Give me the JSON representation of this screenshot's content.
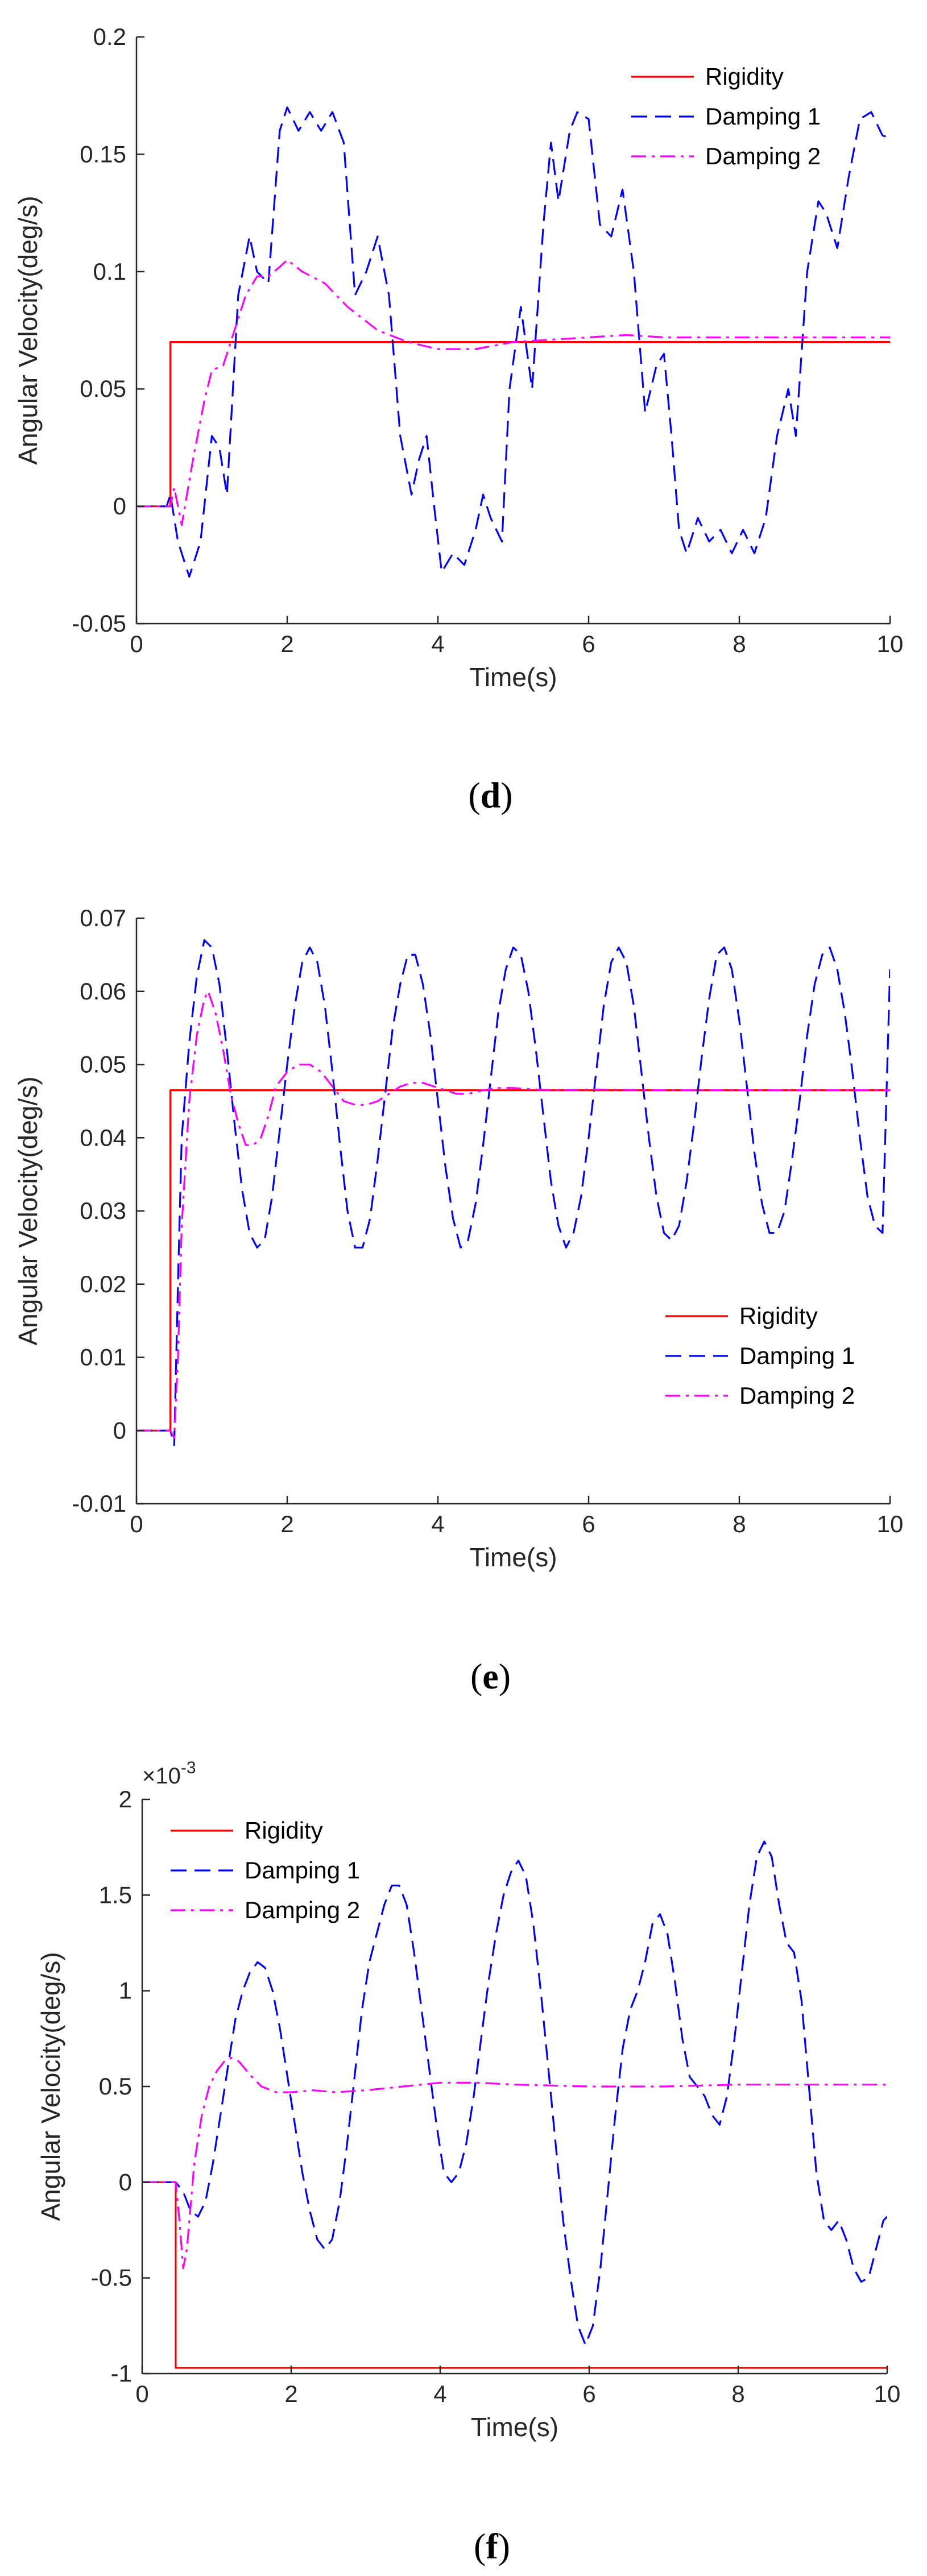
{
  "colors": {
    "rigidity": "#FF0000",
    "damping1": "#0000FF",
    "damping2": "#FF00FF",
    "axis": "#262626"
  },
  "chart_data": [
    {
      "type": "line",
      "caption_open": "(",
      "caption_letter": "d",
      "caption_close": ")",
      "xlabel": "Time(s)",
      "ylabel": "Angular Velocity(deg/s)",
      "xlim": [
        0,
        10
      ],
      "ylim": [
        -0.05,
        0.2
      ],
      "xticks": [
        0,
        2,
        4,
        6,
        8,
        10
      ],
      "yticks": [
        -0.05,
        0,
        0.05,
        0.1,
        0.15,
        0.2
      ],
      "xtick_labels": [
        "0",
        "2",
        "4",
        "6",
        "8",
        "10"
      ],
      "ytick_labels": [
        "-0.05",
        "0",
        "0.05",
        "0.1",
        "0.15",
        "0.2"
      ],
      "exponent_label": "",
      "legend_position": "top-right",
      "series": [
        {
          "name": "Rigidity",
          "style": "solid",
          "color_key": "rigidity",
          "x": [
            0,
            0.45,
            0.45,
            10
          ],
          "y": [
            0,
            0,
            0.07,
            0.07
          ]
        },
        {
          "name": "Damping 1",
          "style": "dashed",
          "color_key": "damping1",
          "x": [
            0,
            0.4,
            0.45,
            0.55,
            0.7,
            0.85,
            1.0,
            1.1,
            1.2,
            1.35,
            1.5,
            1.6,
            1.75,
            1.9,
            2.0,
            2.15,
            2.3,
            2.45,
            2.6,
            2.75,
            2.9,
            3.05,
            3.2,
            3.35,
            3.5,
            3.65,
            3.75,
            3.85,
            3.95,
            4.05,
            4.2,
            4.35,
            4.5,
            4.6,
            4.7,
            4.85,
            4.95,
            5.1,
            5.25,
            5.4,
            5.5,
            5.6,
            5.75,
            5.85,
            6.0,
            6.15,
            6.3,
            6.45,
            6.6,
            6.75,
            6.9,
            7.0,
            7.1,
            7.2,
            7.3,
            7.45,
            7.6,
            7.75,
            7.9,
            8.05,
            8.2,
            8.35,
            8.5,
            8.65,
            8.75,
            8.9,
            9.05,
            9.15,
            9.3,
            9.45,
            9.6,
            9.75,
            9.9,
            10.0
          ],
          "y": [
            0,
            0,
            0.005,
            -0.015,
            -0.03,
            -0.015,
            0.03,
            0.025,
            0.005,
            0.09,
            0.115,
            0.1,
            0.095,
            0.16,
            0.17,
            0.16,
            0.168,
            0.16,
            0.168,
            0.155,
            0.09,
            0.1,
            0.115,
            0.09,
            0.03,
            0.005,
            0.02,
            0.03,
            0.0,
            -0.028,
            -0.02,
            -0.025,
            -0.01,
            0.005,
            -0.005,
            -0.015,
            0.05,
            0.085,
            0.05,
            0.12,
            0.155,
            0.13,
            0.16,
            0.168,
            0.165,
            0.12,
            0.115,
            0.135,
            0.1,
            0.04,
            0.06,
            0.065,
            0.03,
            -0.01,
            -0.02,
            -0.005,
            -0.015,
            -0.01,
            -0.02,
            -0.01,
            -0.02,
            -0.005,
            0.03,
            0.05,
            0.03,
            0.1,
            0.13,
            0.125,
            0.11,
            0.14,
            0.165,
            0.168,
            0.158,
            0.157
          ]
        },
        {
          "name": "Damping 2",
          "style": "dashdot",
          "color_key": "damping2",
          "x": [
            0,
            0.45,
            0.5,
            0.6,
            0.75,
            0.9,
            1.0,
            1.15,
            1.3,
            1.45,
            1.6,
            1.75,
            1.9,
            2.0,
            2.2,
            2.5,
            2.8,
            3.2,
            3.6,
            4.0,
            4.5,
            5.0,
            5.5,
            6.0,
            6.5,
            7.0,
            8.0,
            9.0,
            10.0
          ],
          "y": [
            0,
            0,
            0.008,
            -0.008,
            0.02,
            0.045,
            0.058,
            0.06,
            0.075,
            0.09,
            0.098,
            0.098,
            0.102,
            0.105,
            0.1,
            0.095,
            0.085,
            0.075,
            0.07,
            0.067,
            0.067,
            0.07,
            0.071,
            0.072,
            0.073,
            0.072,
            0.072,
            0.072,
            0.072
          ]
        }
      ]
    },
    {
      "type": "line",
      "caption_open": "(",
      "caption_letter": "e",
      "caption_close": ")",
      "xlabel": "Time(s)",
      "ylabel": "Angular Velocity(deg/s)",
      "xlim": [
        0,
        10
      ],
      "ylim": [
        -0.01,
        0.07
      ],
      "xticks": [
        0,
        2,
        4,
        6,
        8,
        10
      ],
      "yticks": [
        -0.01,
        0,
        0.01,
        0.02,
        0.03,
        0.04,
        0.05,
        0.06,
        0.07
      ],
      "xtick_labels": [
        "0",
        "2",
        "4",
        "6",
        "8",
        "10"
      ],
      "ytick_labels": [
        "-0.01",
        "0",
        "0.01",
        "0.02",
        "0.03",
        "0.04",
        "0.05",
        "0.06",
        "0.07"
      ],
      "exponent_label": "",
      "legend_position": "bottom-right",
      "series": [
        {
          "name": "Rigidity",
          "style": "solid",
          "color_key": "rigidity",
          "x": [
            0,
            0.45,
            0.45,
            10
          ],
          "y": [
            0,
            0,
            0.0465,
            0.0465
          ]
        },
        {
          "name": "Damping 1",
          "style": "dashed",
          "color_key": "damping1",
          "x": [
            0,
            0.45,
            0.5,
            0.55,
            0.6,
            0.7,
            0.8,
            0.9,
            1.0,
            1.1,
            1.2,
            1.3,
            1.4,
            1.5,
            1.6,
            1.7,
            1.8,
            1.9,
            2.0,
            2.1,
            2.2,
            2.3,
            2.4,
            2.5,
            2.6,
            2.7,
            2.8,
            2.9,
            3.0,
            3.1,
            3.2,
            3.3,
            3.4,
            3.5,
            3.6,
            3.7,
            3.8,
            3.9,
            4.0,
            4.1,
            4.2,
            4.3,
            4.4,
            4.5,
            4.6,
            4.7,
            4.8,
            4.9,
            5.0,
            5.1,
            5.2,
            5.3,
            5.4,
            5.5,
            5.6,
            5.7,
            5.8,
            5.9,
            6.0,
            6.1,
            6.2,
            6.3,
            6.4,
            6.5,
            6.6,
            6.7,
            6.8,
            6.9,
            7.0,
            7.1,
            7.2,
            7.3,
            7.4,
            7.5,
            7.6,
            7.7,
            7.8,
            7.9,
            8.0,
            8.1,
            8.2,
            8.3,
            8.4,
            8.5,
            8.6,
            8.7,
            8.8,
            8.9,
            9.0,
            9.1,
            9.2,
            9.3,
            9.4,
            9.5,
            9.6,
            9.7,
            9.8,
            9.9,
            10.0
          ],
          "y": [
            0,
            0,
            -0.002,
            0.02,
            0.04,
            0.053,
            0.062,
            0.067,
            0.066,
            0.061,
            0.052,
            0.042,
            0.033,
            0.027,
            0.025,
            0.026,
            0.032,
            0.041,
            0.05,
            0.058,
            0.064,
            0.066,
            0.064,
            0.058,
            0.049,
            0.039,
            0.03,
            0.025,
            0.025,
            0.029,
            0.037,
            0.046,
            0.055,
            0.061,
            0.065,
            0.065,
            0.061,
            0.054,
            0.045,
            0.036,
            0.029,
            0.025,
            0.026,
            0.031,
            0.039,
            0.048,
            0.057,
            0.063,
            0.066,
            0.065,
            0.06,
            0.052,
            0.043,
            0.034,
            0.028,
            0.025,
            0.027,
            0.032,
            0.04,
            0.049,
            0.058,
            0.064,
            0.066,
            0.064,
            0.058,
            0.049,
            0.04,
            0.032,
            0.027,
            0.026,
            0.028,
            0.034,
            0.042,
            0.051,
            0.059,
            0.065,
            0.066,
            0.063,
            0.056,
            0.047,
            0.038,
            0.031,
            0.027,
            0.027,
            0.03,
            0.037,
            0.045,
            0.054,
            0.061,
            0.065,
            0.066,
            0.063,
            0.057,
            0.049,
            0.04,
            0.032,
            0.028,
            0.027,
            0.063
          ]
        },
        {
          "name": "Damping 2",
          "style": "dashdot",
          "color_key": "damping2",
          "x": [
            0,
            0.45,
            0.5,
            0.55,
            0.6,
            0.7,
            0.8,
            0.9,
            0.95,
            1.05,
            1.15,
            1.25,
            1.35,
            1.45,
            1.55,
            1.65,
            1.75,
            1.85,
            2.0,
            2.15,
            2.3,
            2.45,
            2.6,
            2.75,
            2.9,
            3.05,
            3.2,
            3.35,
            3.5,
            3.65,
            3.8,
            3.95,
            4.1,
            4.25,
            4.4,
            4.6,
            4.8,
            5.0,
            5.3,
            5.6,
            6.0,
            7.0,
            8.0,
            9.0,
            10.0
          ],
          "y": [
            0,
            0,
            -0.001,
            0.01,
            0.028,
            0.045,
            0.054,
            0.059,
            0.06,
            0.057,
            0.052,
            0.046,
            0.042,
            0.039,
            0.039,
            0.04,
            0.043,
            0.047,
            0.049,
            0.05,
            0.05,
            0.049,
            0.047,
            0.045,
            0.0445,
            0.0445,
            0.045,
            0.046,
            0.047,
            0.0475,
            0.0475,
            0.047,
            0.0465,
            0.046,
            0.046,
            0.0465,
            0.0468,
            0.0468,
            0.0466,
            0.0465,
            0.0466,
            0.0465,
            0.0465,
            0.0465,
            0.0465
          ]
        }
      ]
    },
    {
      "type": "line",
      "caption_open": "(",
      "caption_letter": "f",
      "caption_close": ")",
      "xlabel": "Time(s)",
      "ylabel": "Angular Velocity(deg/s)",
      "xlim": [
        0,
        10
      ],
      "ylim": [
        -1,
        2
      ],
      "xticks": [
        0,
        2,
        4,
        6,
        8,
        10
      ],
      "yticks": [
        -1,
        -0.5,
        0,
        0.5,
        1,
        1.5,
        2
      ],
      "xtick_labels": [
        "0",
        "2",
        "4",
        "6",
        "8",
        "10"
      ],
      "ytick_labels": [
        "-1",
        "-0.5",
        "0",
        "0.5",
        "1",
        "1.5",
        "2"
      ],
      "exponent_label": "×10",
      "exponent_power": "-3",
      "legend_position": "top-left",
      "series": [
        {
          "name": "Rigidity",
          "style": "solid",
          "color_key": "rigidity",
          "x": [
            0,
            0.45,
            0.45,
            10
          ],
          "y": [
            0,
            0,
            -0.97,
            -0.97
          ]
        },
        {
          "name": "Damping 1",
          "style": "dashed",
          "color_key": "damping1",
          "x": [
            0,
            0.45,
            0.55,
            0.65,
            0.75,
            0.85,
            0.95,
            1.05,
            1.15,
            1.25,
            1.35,
            1.45,
            1.55,
            1.65,
            1.75,
            1.85,
            1.95,
            2.05,
            2.15,
            2.25,
            2.35,
            2.45,
            2.55,
            2.65,
            2.75,
            2.85,
            2.95,
            3.05,
            3.15,
            3.25,
            3.35,
            3.45,
            3.55,
            3.65,
            3.75,
            3.85,
            3.95,
            4.05,
            4.15,
            4.25,
            4.35,
            4.45,
            4.55,
            4.65,
            4.75,
            4.85,
            4.95,
            5.05,
            5.15,
            5.25,
            5.35,
            5.45,
            5.55,
            5.65,
            5.75,
            5.85,
            5.95,
            6.05,
            6.15,
            6.25,
            6.35,
            6.45,
            6.55,
            6.65,
            6.75,
            6.85,
            6.95,
            7.05,
            7.15,
            7.25,
            7.35,
            7.45,
            7.55,
            7.65,
            7.75,
            7.85,
            7.95,
            8.05,
            8.15,
            8.25,
            8.35,
            8.45,
            8.55,
            8.65,
            8.75,
            8.85,
            8.95,
            9.05,
            9.15,
            9.25,
            9.35,
            9.45,
            9.55,
            9.65,
            9.75,
            9.85,
            9.95,
            10.0
          ],
          "y": [
            0,
            0,
            -0.05,
            -0.15,
            -0.18,
            -0.1,
            0.1,
            0.35,
            0.6,
            0.85,
            1.0,
            1.1,
            1.15,
            1.12,
            1.0,
            0.8,
            0.55,
            0.3,
            0.05,
            -0.15,
            -0.3,
            -0.35,
            -0.3,
            -0.1,
            0.2,
            0.55,
            0.9,
            1.15,
            1.3,
            1.45,
            1.55,
            1.55,
            1.45,
            1.2,
            0.9,
            0.6,
            0.3,
            0.05,
            0.0,
            0.05,
            0.2,
            0.45,
            0.75,
            1.05,
            1.3,
            1.5,
            1.62,
            1.68,
            1.6,
            1.35,
            1.0,
            0.6,
            0.2,
            -0.2,
            -0.5,
            -0.75,
            -0.85,
            -0.75,
            -0.45,
            -0.05,
            0.35,
            0.7,
            0.9,
            1.0,
            1.15,
            1.35,
            1.4,
            1.3,
            1.05,
            0.75,
            0.55,
            0.5,
            0.45,
            0.35,
            0.3,
            0.45,
            0.75,
            1.1,
            1.45,
            1.7,
            1.78,
            1.7,
            1.45,
            1.25,
            1.2,
            0.95,
            0.5,
            0.05,
            -0.2,
            -0.25,
            -0.2,
            -0.3,
            -0.45,
            -0.52,
            -0.5,
            -0.35,
            -0.2,
            -0.18
          ]
        },
        {
          "name": "Damping 2",
          "style": "dashdot",
          "color_key": "damping2",
          "x": [
            0,
            0.45,
            0.5,
            0.55,
            0.6,
            0.7,
            0.8,
            0.9,
            1.0,
            1.1,
            1.2,
            1.3,
            1.45,
            1.6,
            1.8,
            2.0,
            2.3,
            2.6,
            3.0,
            3.5,
            4.0,
            4.5,
            5.0,
            6.0,
            7.0,
            8.0,
            9.0,
            10.0
          ],
          "y": [
            0,
            0,
            -0.2,
            -0.45,
            -0.35,
            0.1,
            0.35,
            0.5,
            0.58,
            0.63,
            0.65,
            0.63,
            0.56,
            0.5,
            0.47,
            0.47,
            0.48,
            0.47,
            0.48,
            0.5,
            0.52,
            0.52,
            0.51,
            0.5,
            0.5,
            0.51,
            0.51,
            0.51
          ]
        }
      ]
    }
  ]
}
